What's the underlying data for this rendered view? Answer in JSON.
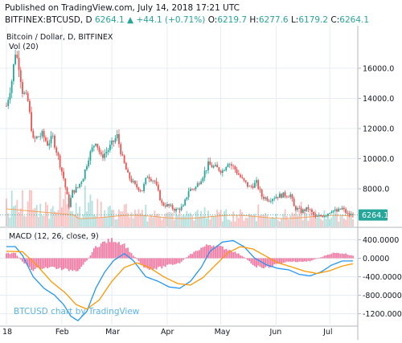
{
  "header": {
    "published": "Published on TradingView.com, July 14, 2018 17:21 UTC",
    "symbol": "BITFINEX:BTCUSD, D",
    "last": "6264.1",
    "arrow": "▲",
    "change": "+44.1 (+0.71%)",
    "o_label": "O:",
    "o_value": "6219.7",
    "h_label": "H:",
    "h_value": "6277.6",
    "l_label": "L:",
    "l_value": "6179.2",
    "c_label": "C:",
    "c_value": "6264.1"
  },
  "main_pane": {
    "legend_title": "Bitcoin / Dollar, D, BITFINEX",
    "legend_vol": "Vol (20)",
    "price_tag": "6264.1"
  },
  "macd_pane": {
    "legend": "MACD (12, 26, close, 9)",
    "watermark": "BTCUSD chart by TradingView"
  },
  "colors": {
    "up": "#26a69a",
    "down": "#ef5350",
    "macd_line": "#2196f3",
    "signal_line": "#ff9800",
    "histogram": "#f06292",
    "grid": "#e6ecf3"
  },
  "chart_data": [
    {
      "type": "candlestick",
      "title": "Bitcoin / Dollar, D, BITFINEX",
      "x_ticks": [
        "18",
        "Feb",
        "Mar",
        "Apr",
        "May",
        "Jun",
        "Jul"
      ],
      "y_ticks": [
        "16000.0",
        "14000.0",
        "12000.0",
        "10000.0",
        "8000.0"
      ],
      "ylim": [
        5500,
        18500
      ],
      "y_scale": "linear",
      "grid": true,
      "last_price": 6264.1,
      "close_path": [
        [
          "2018-01-01",
          13500
        ],
        [
          "2018-01-04",
          15200
        ],
        [
          "2018-01-06",
          17100
        ],
        [
          "2018-01-08",
          16200
        ],
        [
          "2018-01-10",
          14500
        ],
        [
          "2018-01-13",
          13800
        ],
        [
          "2018-01-16",
          11200
        ],
        [
          "2018-01-18",
          11400
        ],
        [
          "2018-01-21",
          11600
        ],
        [
          "2018-01-24",
          11000
        ],
        [
          "2018-01-27",
          11400
        ],
        [
          "2018-01-30",
          10100
        ],
        [
          "2018-02-02",
          8700
        ],
        [
          "2018-02-05",
          6900
        ],
        [
          "2018-02-07",
          7800
        ],
        [
          "2018-02-10",
          8100
        ],
        [
          "2018-02-13",
          8800
        ],
        [
          "2018-02-16",
          10100
        ],
        [
          "2018-02-20",
          11200
        ],
        [
          "2018-02-23",
          10100
        ],
        [
          "2018-02-27",
          10600
        ],
        [
          "2018-03-04",
          11500
        ],
        [
          "2018-03-07",
          10000
        ],
        [
          "2018-03-10",
          8900
        ],
        [
          "2018-03-14",
          8200
        ],
        [
          "2018-03-18",
          7900
        ],
        [
          "2018-03-21",
          8900
        ],
        [
          "2018-03-25",
          8500
        ],
        [
          "2018-03-29",
          7000
        ],
        [
          "2018-04-01",
          6900
        ],
        [
          "2018-04-06",
          6600
        ],
        [
          "2018-04-10",
          6800
        ],
        [
          "2018-04-13",
          7900
        ],
        [
          "2018-04-17",
          8100
        ],
        [
          "2018-04-21",
          8900
        ],
        [
          "2018-04-24",
          9600
        ],
        [
          "2018-04-28",
          9400
        ],
        [
          "2018-05-02",
          9200
        ],
        [
          "2018-05-05",
          9800
        ],
        [
          "2018-05-09",
          9300
        ],
        [
          "2018-05-13",
          8600
        ],
        [
          "2018-05-17",
          8100
        ],
        [
          "2018-05-21",
          8400
        ],
        [
          "2018-05-24",
          7500
        ],
        [
          "2018-05-28",
          7300
        ],
        [
          "2018-06-01",
          7500
        ],
        [
          "2018-06-05",
          7600
        ],
        [
          "2018-06-09",
          7600
        ],
        [
          "2018-06-11",
          6800
        ],
        [
          "2018-06-15",
          6500
        ],
        [
          "2018-06-19",
          6700
        ],
        [
          "2018-06-23",
          6100
        ],
        [
          "2018-06-26",
          6200
        ],
        [
          "2018-06-29",
          6300
        ],
        [
          "2018-07-02",
          6600
        ],
        [
          "2018-07-05",
          6500
        ],
        [
          "2018-07-08",
          6700
        ],
        [
          "2018-07-11",
          6300
        ],
        [
          "2018-07-14",
          6264
        ]
      ],
      "volume_series": "Vol (20)"
    },
    {
      "type": "line",
      "title": "MACD (12, 26, close, 9)",
      "y_ticks": [
        "400.0000",
        "0.0000",
        "-400.0000",
        "-800.0000",
        "-1200.0000"
      ],
      "ylim": [
        -1450,
        650
      ],
      "grid": true,
      "series": [
        {
          "name": "MACD",
          "color": "#2196f3",
          "points": [
            [
              "2018-01-01",
              250
            ],
            [
              "2018-01-06",
              250
            ],
            [
              "2018-01-10",
              60
            ],
            [
              "2018-01-16",
              -400
            ],
            [
              "2018-01-22",
              -650
            ],
            [
              "2018-01-28",
              -800
            ],
            [
              "2018-02-02",
              -1000
            ],
            [
              "2018-02-06",
              -1250
            ],
            [
              "2018-02-10",
              -1350
            ],
            [
              "2018-02-15",
              -1150
            ],
            [
              "2018-02-20",
              -650
            ],
            [
              "2018-02-25",
              -300
            ],
            [
              "2018-03-02",
              -50
            ],
            [
              "2018-03-08",
              100
            ],
            [
              "2018-03-13",
              -50
            ],
            [
              "2018-03-20",
              -400
            ],
            [
              "2018-03-27",
              -500
            ],
            [
              "2018-04-02",
              -620
            ],
            [
              "2018-04-08",
              -650
            ],
            [
              "2018-04-14",
              -500
            ],
            [
              "2018-04-20",
              -200
            ],
            [
              "2018-04-25",
              150
            ],
            [
              "2018-05-02",
              350
            ],
            [
              "2018-05-08",
              380
            ],
            [
              "2018-05-14",
              250
            ],
            [
              "2018-05-20",
              0
            ],
            [
              "2018-05-27",
              -150
            ],
            [
              "2018-06-02",
              -220
            ],
            [
              "2018-06-08",
              -250
            ],
            [
              "2018-06-14",
              -350
            ],
            [
              "2018-06-20",
              -380
            ],
            [
              "2018-06-26",
              -300
            ],
            [
              "2018-07-02",
              -150
            ],
            [
              "2018-07-08",
              -60
            ],
            [
              "2018-07-14",
              -60
            ]
          ]
        },
        {
          "name": "Signal",
          "color": "#ff9800",
          "points": [
            [
              "2018-01-01",
              150
            ],
            [
              "2018-01-10",
              140
            ],
            [
              "2018-01-18",
              -150
            ],
            [
              "2018-01-26",
              -500
            ],
            [
              "2018-02-03",
              -750
            ],
            [
              "2018-02-09",
              -1000
            ],
            [
              "2018-02-15",
              -1100
            ],
            [
              "2018-02-22",
              -900
            ],
            [
              "2018-03-01",
              -500
            ],
            [
              "2018-03-08",
              -200
            ],
            [
              "2018-03-15",
              -100
            ],
            [
              "2018-03-22",
              -200
            ],
            [
              "2018-03-30",
              -400
            ],
            [
              "2018-04-07",
              -550
            ],
            [
              "2018-04-14",
              -580
            ],
            [
              "2018-04-21",
              -420
            ],
            [
              "2018-04-28",
              -150
            ],
            [
              "2018-05-05",
              120
            ],
            [
              "2018-05-12",
              250
            ],
            [
              "2018-05-19",
              200
            ],
            [
              "2018-05-26",
              50
            ],
            [
              "2018-06-02",
              -100
            ],
            [
              "2018-06-09",
              -180
            ],
            [
              "2018-06-17",
              -280
            ],
            [
              "2018-06-24",
              -330
            ],
            [
              "2018-07-01",
              -270
            ],
            [
              "2018-07-08",
              -170
            ],
            [
              "2018-07-14",
              -120
            ]
          ]
        },
        {
          "name": "Histogram",
          "type": "bar",
          "color": "#f06292",
          "points": [
            [
              "2018-01-01",
              100
            ],
            [
              "2018-01-06",
              110
            ],
            [
              "2018-01-10",
              -80
            ],
            [
              "2018-01-16",
              -250
            ],
            [
              "2018-01-22",
              -200
            ],
            [
              "2018-01-28",
              -200
            ],
            [
              "2018-02-02",
              -250
            ],
            [
              "2018-02-06",
              -250
            ],
            [
              "2018-02-10",
              -250
            ],
            [
              "2018-02-15",
              -50
            ],
            [
              "2018-02-20",
              250
            ],
            [
              "2018-02-25",
              350
            ],
            [
              "2018-03-02",
              400
            ],
            [
              "2018-03-08",
              300
            ],
            [
              "2018-03-13",
              60
            ],
            [
              "2018-03-20",
              -220
            ],
            [
              "2018-03-27",
              -220
            ],
            [
              "2018-04-02",
              -150
            ],
            [
              "2018-04-08",
              -100
            ],
            [
              "2018-04-14",
              80
            ],
            [
              "2018-04-20",
              220
            ],
            [
              "2018-04-25",
              300
            ],
            [
              "2018-05-02",
              230
            ],
            [
              "2018-05-08",
              150
            ],
            [
              "2018-05-14",
              30
            ],
            [
              "2018-05-20",
              -170
            ],
            [
              "2018-05-27",
              -200
            ],
            [
              "2018-06-02",
              -120
            ],
            [
              "2018-06-08",
              -70
            ],
            [
              "2018-06-14",
              -80
            ],
            [
              "2018-06-20",
              -60
            ],
            [
              "2018-06-26",
              20
            ],
            [
              "2018-07-02",
              110
            ],
            [
              "2018-07-08",
              110
            ],
            [
              "2018-07-14",
              60
            ]
          ]
        }
      ]
    }
  ]
}
